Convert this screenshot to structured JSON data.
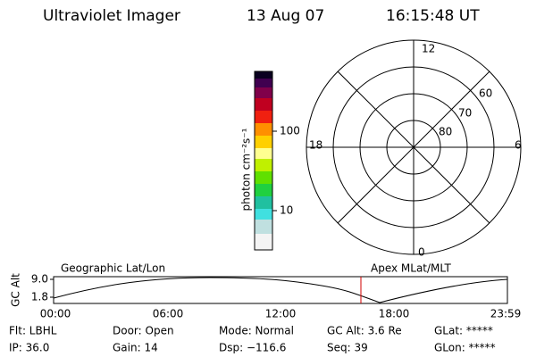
{
  "header": {
    "instrument": "Ultraviolet Imager",
    "date": "13 Aug 07",
    "time": "16:15:48 UT"
  },
  "colorbar": {
    "label": "photon cm⁻²s⁻¹",
    "ticks": [
      "100",
      "10"
    ]
  },
  "polar": {
    "mlt_labels": {
      "top": "12",
      "right": "6",
      "left": "18",
      "bottom": "0"
    },
    "lat_labels": [
      "60",
      "70",
      "80"
    ]
  },
  "orbit": {
    "y_label": "GC Alt",
    "y_ticks": [
      "9.0",
      "1.8"
    ],
    "left_title": "Geographic Lat/Lon",
    "right_title": "Apex MLat/MLT",
    "x_ticks": [
      "00:00",
      "06:00",
      "12:00",
      "18:00",
      "23:59"
    ]
  },
  "info": {
    "rows": [
      [
        "Flt: LBHL",
        "Door: Open",
        "Mode: Normal",
        "GC Alt: 3.6 Re",
        "GLat: *****"
      ],
      [
        "IP: 36.0",
        "Gain: 14",
        "Dsp: −116.6",
        "Seq: 39",
        "GLon: *****"
      ]
    ]
  }
}
